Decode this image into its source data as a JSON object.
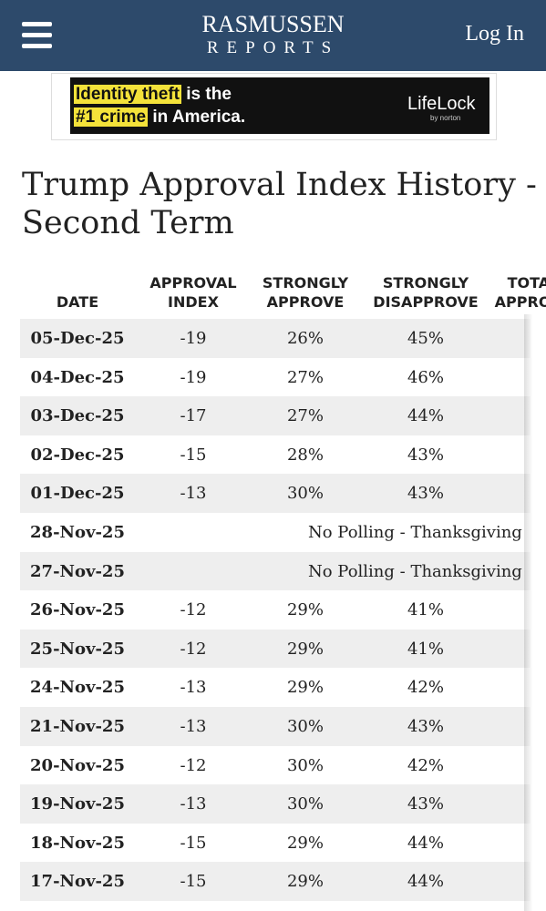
{
  "header": {
    "logo_top": "RASMUSSEN",
    "logo_bottom": "REPORTS",
    "login": "Log In"
  },
  "ad": {
    "line1_highlight": "Identity theft",
    "line1_rest": "is the",
    "line2_highlight": "#1 crime",
    "line2_rest": "in America.",
    "brand": "LifeLock",
    "brand_sub": "by norton"
  },
  "title": "Trump Approval Index History - Second Term",
  "table": {
    "columns": [
      "DATE",
      "APPROVAL INDEX",
      "STRONGLY APPROVE",
      "STRONGLY DISAPPROVE",
      "TOTAL APPROVE"
    ],
    "rows": [
      [
        "05-Dec-25",
        "-19",
        "26%",
        "45%"
      ],
      [
        "04-Dec-25",
        "-19",
        "27%",
        "46%"
      ],
      [
        "03-Dec-25",
        "-17",
        "27%",
        "44%"
      ],
      [
        "02-Dec-25",
        "-15",
        "28%",
        "43%"
      ],
      [
        "01-Dec-25",
        "-13",
        "30%",
        "43%"
      ],
      [
        "28-Nov-25",
        "No Polling - Thanksgiving"
      ],
      [
        "27-Nov-25",
        "No Polling - Thanksgiving"
      ],
      [
        "26-Nov-25",
        "-12",
        "29%",
        "41%"
      ],
      [
        "25-Nov-25",
        "-12",
        "29%",
        "41%"
      ],
      [
        "24-Nov-25",
        "-13",
        "29%",
        "42%"
      ],
      [
        "21-Nov-25",
        "-13",
        "30%",
        "43%"
      ],
      [
        "20-Nov-25",
        "-12",
        "30%",
        "42%"
      ],
      [
        "19-Nov-25",
        "-13",
        "30%",
        "43%"
      ],
      [
        "18-Nov-25",
        "-15",
        "29%",
        "44%"
      ],
      [
        "17-Nov-25",
        "-15",
        "29%",
        "44%"
      ]
    ]
  }
}
